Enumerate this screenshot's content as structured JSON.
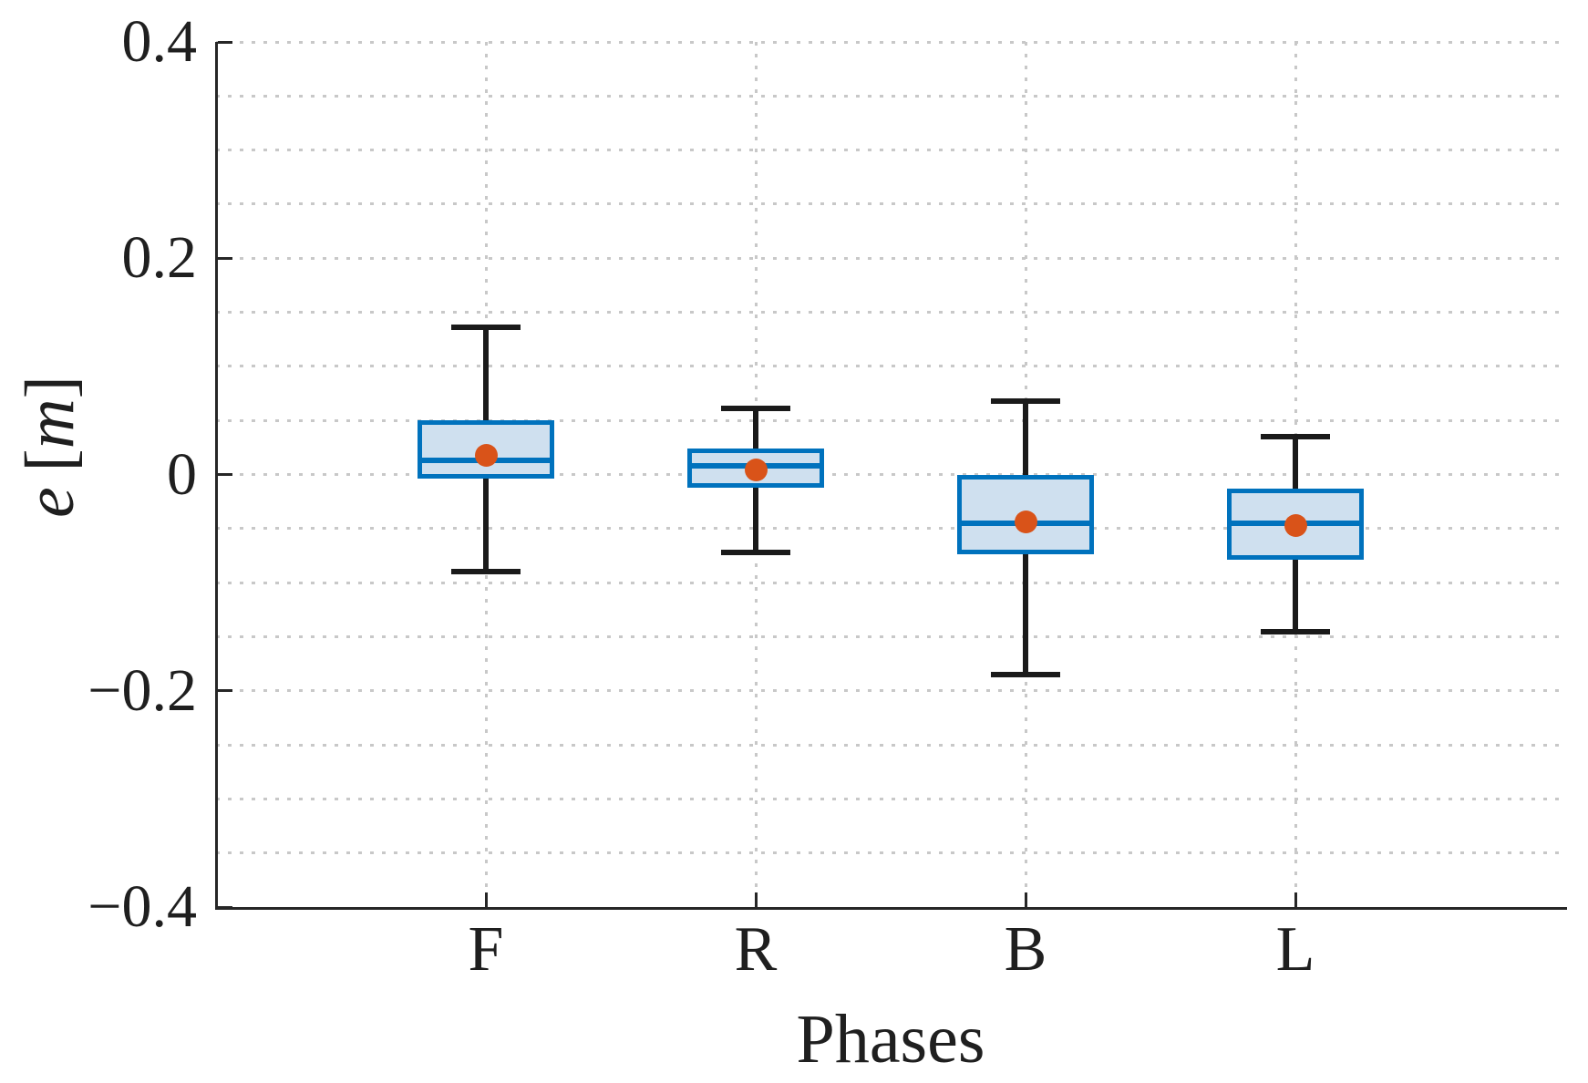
{
  "chart_data": {
    "type": "boxplot",
    "title": "",
    "xlabel": "Phases",
    "ylabel": "e [m]",
    "ylabel_parts": {
      "variable": "e",
      "lbracket": "[",
      "unit": "m",
      "rbracket": "]"
    },
    "categories": [
      "F",
      "R",
      "B",
      "L"
    ],
    "xlim": [
      0,
      5
    ],
    "ylim": [
      -0.4,
      0.4
    ],
    "yticks": [
      {
        "value": 0.4,
        "label": "0.4"
      },
      {
        "value": 0.2,
        "label": "0.2"
      },
      {
        "value": 0.0,
        "label": "0"
      },
      {
        "value": -0.2,
        "label": "−0.2"
      },
      {
        "value": -0.4,
        "label": "−0.4"
      }
    ],
    "minor_grid_step": 0.05,
    "grid": "dotted-minor-horizontal-and-category-vertical",
    "legend": "none",
    "series": [
      {
        "category": "F",
        "whisker_low": -0.09,
        "q1": -0.004,
        "median": 0.013,
        "mean": 0.018,
        "q3": 0.05,
        "whisker_high": 0.136
      },
      {
        "category": "R",
        "whisker_low": -0.072,
        "q1": -0.012,
        "median": 0.008,
        "mean": 0.004,
        "q3": 0.024,
        "whisker_high": 0.061
      },
      {
        "category": "B",
        "whisker_low": -0.185,
        "q1": -0.074,
        "median": -0.045,
        "mean": -0.044,
        "q3": 0.0,
        "whisker_high": 0.068
      },
      {
        "category": "L",
        "whisker_low": -0.145,
        "q1": -0.079,
        "median": -0.045,
        "mean": -0.047,
        "q3": -0.013,
        "whisker_high": 0.035
      }
    ],
    "colors": {
      "box_edge": "#0072bd",
      "box_fill": "#cfe0ef",
      "median_line": "#0072bd",
      "mean_marker": "#d95319",
      "whisker": "#1a1a1a",
      "grid": "#c8c8c8",
      "axis": "#262626",
      "text": "#1f1f1f",
      "background": "#ffffff"
    }
  }
}
